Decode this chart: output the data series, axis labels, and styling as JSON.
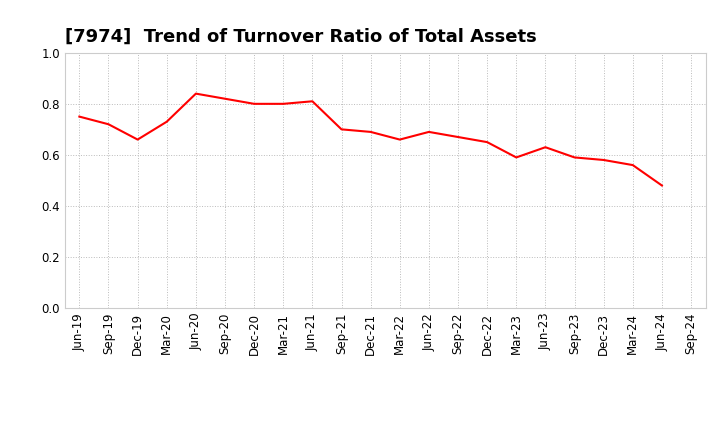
{
  "title": "[7974]  Trend of Turnover Ratio of Total Assets",
  "labels": [
    "Jun-19",
    "Sep-19",
    "Dec-19",
    "Mar-20",
    "Jun-20",
    "Sep-20",
    "Dec-20",
    "Mar-21",
    "Jun-21",
    "Sep-21",
    "Dec-21",
    "Mar-22",
    "Jun-22",
    "Sep-22",
    "Dec-22",
    "Mar-23",
    "Jun-23",
    "Sep-23",
    "Dec-23",
    "Mar-24",
    "Jun-24",
    "Sep-24"
  ],
  "values": [
    0.75,
    0.72,
    0.66,
    0.73,
    0.84,
    0.82,
    0.8,
    0.8,
    0.81,
    0.7,
    0.69,
    0.66,
    0.69,
    0.67,
    0.65,
    0.59,
    0.63,
    0.59,
    0.58,
    0.56,
    0.48,
    null
  ],
  "line_color": "#FF0000",
  "line_width": 1.5,
  "ylim": [
    0.0,
    1.0
  ],
  "yticks": [
    0.0,
    0.2,
    0.4,
    0.6,
    0.8,
    1.0
  ],
  "grid_color": "#bbbbbb",
  "background_color": "#ffffff",
  "title_fontsize": 13,
  "tick_fontsize": 8.5
}
